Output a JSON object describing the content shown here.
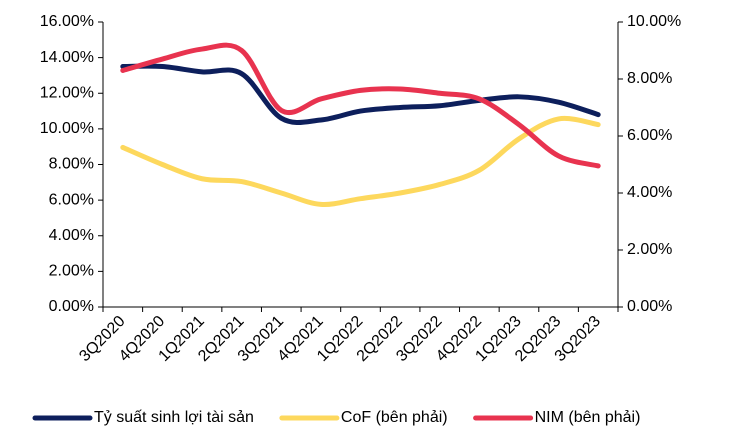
{
  "chart_data": {
    "type": "line",
    "categories": [
      "3Q2020",
      "4Q2020",
      "1Q2021",
      "2Q2021",
      "3Q2021",
      "4Q2021",
      "1Q2022",
      "2Q2022",
      "3Q2022",
      "4Q2022",
      "1Q2023",
      "2Q2023",
      "3Q2023"
    ],
    "series": [
      {
        "name": "Tỷ suất sinh lợi tài sản",
        "color": "#0d1f5c",
        "axis": "y",
        "values": [
          13.5,
          13.5,
          13.2,
          13.1,
          10.6,
          10.5,
          11.0,
          11.2,
          11.3,
          11.6,
          11.8,
          11.5,
          10.8
        ]
      },
      {
        "name": "CoF (bên phải)",
        "color": "#fdd85d",
        "axis": "y2",
        "values": [
          5.6,
          5.0,
          4.5,
          4.4,
          4.0,
          3.6,
          3.8,
          4.0,
          4.3,
          4.8,
          5.9,
          6.6,
          6.4
        ]
      },
      {
        "name": "NIM (bên phải)",
        "color": "#e8334f",
        "axis": "y2",
        "values": [
          8.3,
          8.7,
          9.05,
          9.0,
          6.9,
          7.3,
          7.6,
          7.65,
          7.5,
          7.3,
          6.4,
          5.3,
          4.95
        ]
      }
    ],
    "ylim": [
      0,
      16
    ],
    "yticks": [
      {
        "value": 0,
        "label": "0.00%"
      },
      {
        "value": 2,
        "label": "2.00%"
      },
      {
        "value": 4,
        "label": "4.00%"
      },
      {
        "value": 6,
        "label": "6.00%"
      },
      {
        "value": 8,
        "label": "8.00%"
      },
      {
        "value": 10,
        "label": "10.00%"
      },
      {
        "value": 12,
        "label": "12.00%"
      },
      {
        "value": 14,
        "label": "14.00%"
      },
      {
        "value": 16,
        "label": "16.00%"
      }
    ],
    "y2lim": [
      0,
      10
    ],
    "y2ticks": [
      {
        "value": 0,
        "label": "0.00%"
      },
      {
        "value": 2,
        "label": "2.00%"
      },
      {
        "value": 4,
        "label": "4.00%"
      },
      {
        "value": 6,
        "label": "6.00%"
      },
      {
        "value": 8,
        "label": "8.00%"
      },
      {
        "value": 10,
        "label": "10.00%"
      }
    ],
    "grid": false,
    "legend": "bottom"
  }
}
